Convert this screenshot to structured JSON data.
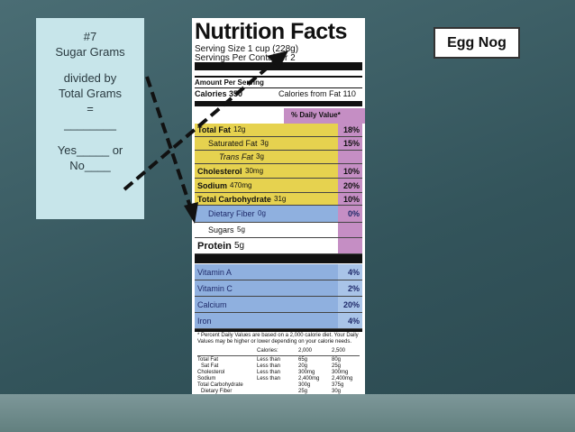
{
  "note": {
    "lines": [
      "#7",
      "Sugar Grams",
      "divided by",
      "Total Grams",
      "=",
      "________",
      "Yes_____ or",
      "No____"
    ]
  },
  "badge": "Egg Nog",
  "label": {
    "title": "Nutrition Facts",
    "serving_size": "Serving Size 1 cup (228g)",
    "servings": "Servings Per Container 2",
    "amount_per_serving": "Amount Per Serving",
    "calories": "Calories 350",
    "calories_from_fat": "Calories from Fat 110",
    "daily_value_header": "% Daily Value*",
    "rows": [
      {
        "name": "Total Fat",
        "amount": "12g",
        "dv": "18%"
      },
      {
        "name": "Saturated Fat",
        "amount": "3g",
        "dv": "15%"
      },
      {
        "name": "Trans Fat",
        "amount": "3g"
      },
      {
        "name": "Cholesterol",
        "amount": "30mg",
        "dv": "10%"
      },
      {
        "name": "Sodium",
        "amount": "470mg",
        "dv": "20%"
      },
      {
        "name": "Total Carbohydrate",
        "amount": "31g",
        "dv": "10%"
      },
      {
        "name": "Dietary Fiber",
        "amount": "0g",
        "dv": "0%"
      },
      {
        "name": "Sugars",
        "amount": "5g"
      },
      {
        "name": "Protein",
        "amount": "5g"
      },
      {
        "name": "Vitamin A",
        "dv": "4%"
      },
      {
        "name": "Vitamin C",
        "dv": "2%"
      },
      {
        "name": "Calcium",
        "dv": "20%"
      },
      {
        "name": "Iron",
        "dv": "4%"
      }
    ],
    "footnote": "* Percent Daily Values are based on a 2,000 calorie diet. Your Daily Values may be higher or lower depending on your calorie needs.",
    "table": {
      "header": [
        "Calories:",
        "2,000",
        "2,500"
      ],
      "rows": [
        [
          "Total Fat",
          "Less than",
          "65g",
          "80g"
        ],
        [
          "Sat Fat",
          "Less than",
          "20g",
          "25g"
        ],
        [
          "Cholesterol",
          "Less than",
          "300mg",
          "300mg"
        ],
        [
          "Sodium",
          "Less than",
          "2,400mg",
          "2,400mg"
        ],
        [
          "Total Carbohydrate",
          "",
          "300g",
          "375g"
        ],
        [
          "Dietary Fiber",
          "",
          "25g",
          "30g"
        ]
      ]
    }
  }
}
